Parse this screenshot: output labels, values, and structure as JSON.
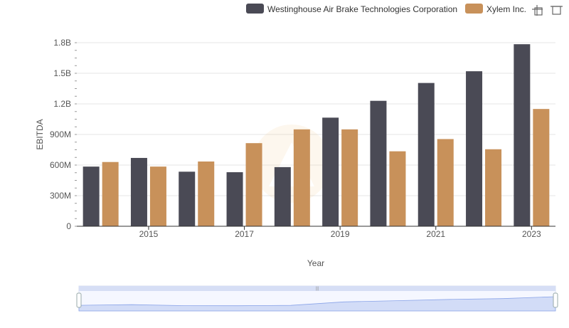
{
  "toolbar": {
    "icons": [
      "zoom-icon",
      "restore-icon"
    ]
  },
  "chart_data": {
    "type": "bar",
    "x": [
      2014,
      2015,
      2016,
      2017,
      2018,
      2019,
      2020,
      2021,
      2022,
      2023
    ],
    "xticks": [
      "2015",
      "2017",
      "2019",
      "2021",
      "2023"
    ],
    "xlabel": "Year",
    "ylabel": "EBITDA",
    "ylim": [
      0,
      1800000000
    ],
    "yticks": [
      "0",
      "300M",
      "600M",
      "900M",
      "1.2B",
      "1.5B",
      "1.8B"
    ],
    "grid": true,
    "legend_position": "top-right",
    "series": [
      {
        "name": "Westinghouse Air Brake Technologies Corporation",
        "color": "#4a4a55",
        "values": [
          585000000,
          670000000,
          535000000,
          530000000,
          580000000,
          1065000000,
          1230000000,
          1405000000,
          1520000000,
          1785000000
        ]
      },
      {
        "name": "Xylem Inc.",
        "color": "#c8915a",
        "values": [
          630000000,
          585000000,
          635000000,
          815000000,
          950000000,
          950000000,
          735000000,
          855000000,
          755000000,
          1150000000
        ]
      }
    ]
  }
}
